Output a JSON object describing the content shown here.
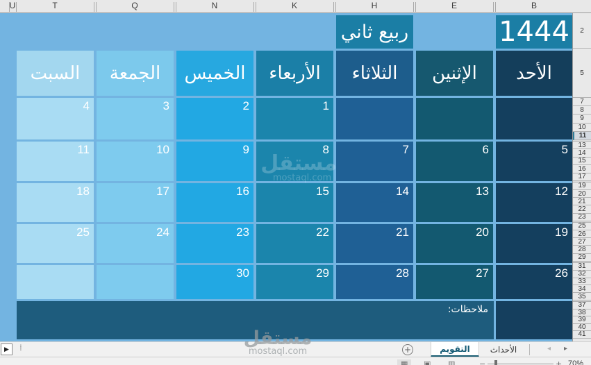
{
  "column_headers": {
    "letters": [
      "U",
      "T",
      "Q",
      "N",
      "K",
      "H",
      "E",
      "B"
    ]
  },
  "row_headers": {
    "numbers": [
      "2",
      "5",
      "7",
      "8",
      "9",
      "10",
      "11",
      "13",
      "14",
      "15",
      "16",
      "17",
      "19",
      "20",
      "21",
      "22",
      "23",
      "25",
      "26",
      "27",
      "28",
      "29",
      "31",
      "32",
      "33",
      "34",
      "35",
      "37",
      "38",
      "39",
      "40",
      "41"
    ],
    "highlighted": "11"
  },
  "calendar": {
    "year": "1444",
    "month": "ربيع ثاني",
    "notes_label": "ملاحظات:",
    "day_columns": [
      {
        "name": "السبت",
        "header_bg": "#a3d7ef",
        "cell_bg": "#a9dcf3"
      },
      {
        "name": "الجمعة",
        "header_bg": "#7cc9ec",
        "cell_bg": "#7ecbee"
      },
      {
        "name": "الخميس",
        "header_bg": "#27a8e0",
        "cell_bg": "#22a8e3"
      },
      {
        "name": "الأربعاء",
        "header_bg": "#1b7fa7",
        "cell_bg": "#1b85ac"
      },
      {
        "name": "الثلاثاء",
        "header_bg": "#1d5d8c",
        "cell_bg": "#1f6095"
      },
      {
        "name": "الإثنين",
        "header_bg": "#16586f",
        "cell_bg": "#135970"
      },
      {
        "name": "الأحد",
        "header_bg": "#143e5b",
        "cell_bg": "#143f5e"
      }
    ],
    "weeks": [
      [
        "4",
        "3",
        "2",
        "1",
        "",
        "",
        ""
      ],
      [
        "11",
        "10",
        "9",
        "8",
        "7",
        "6",
        "5"
      ],
      [
        "18",
        "17",
        "16",
        "15",
        "14",
        "13",
        "12"
      ],
      [
        "25",
        "24",
        "23",
        "22",
        "21",
        "20",
        "19"
      ],
      [
        "",
        "",
        "30",
        "29",
        "28",
        "27",
        "26"
      ]
    ]
  },
  "sheet_tabs": {
    "active": "التقويم",
    "inactive": "الأحداث",
    "add_sheet_glyph": "+",
    "prev_glyph": "◂",
    "next_glyph": "▸",
    "scroll_right_glyph": "▶",
    "drag_dots_glyph": "⁞"
  },
  "status_bar": {
    "zoom": "70%",
    "normal_view_glyph": "▦",
    "layout_view_glyph": "▣",
    "break_view_glyph": "▥",
    "minus_glyph": "−",
    "plus_glyph": "+"
  },
  "watermark": {
    "title": "مستقل",
    "domain": "mostaql.com"
  },
  "colors": {
    "grid_bg": "#73b4e1",
    "title_box_bg": "#1b7ea5",
    "notes_bg": "#1e5c7d",
    "notes_sunday_bg": "#153f5e",
    "active_tab_underline": "#1b5e73"
  }
}
